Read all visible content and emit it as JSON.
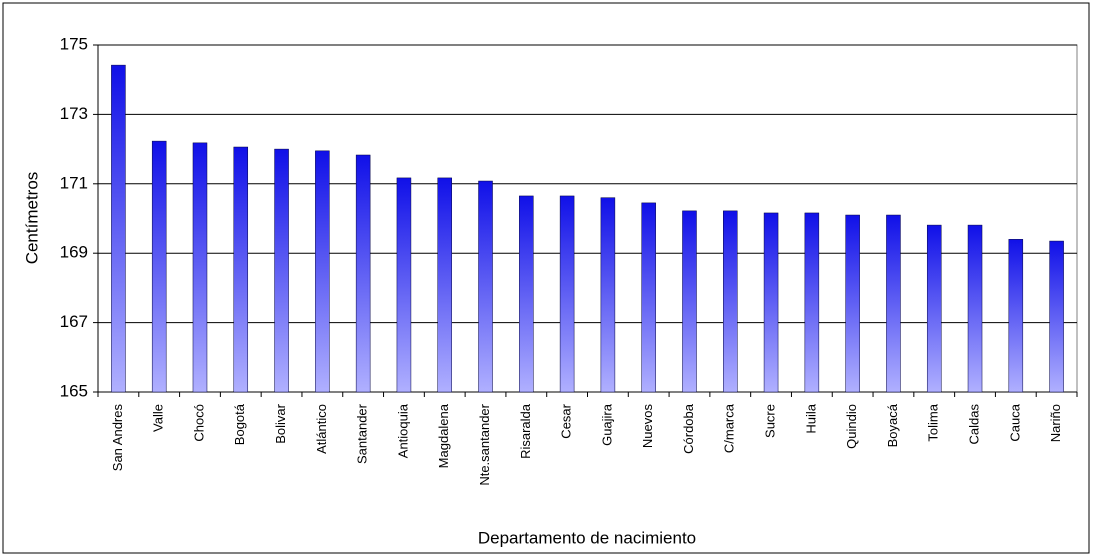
{
  "chart_data": {
    "type": "bar",
    "x_label": "Departamento de nacimiento",
    "y_label": "Centímetros",
    "categories": [
      "San Andres",
      "Valle",
      "Chocó",
      "Bogotá",
      "Bolivar",
      "Atlántico",
      "Santander",
      "Antioquia",
      "Magdalena",
      "Nte.santander",
      "Risaralda",
      "Cesar",
      "Guajira",
      "Nuevos",
      "Córdoba",
      "C/marca",
      "Sucre",
      "Huila",
      "Quindio",
      "Boyacá",
      "Tolima",
      "Caldas",
      "Cauca",
      "Nariño"
    ],
    "values": [
      174.42,
      172.23,
      172.18,
      172.06,
      172.0,
      171.95,
      171.83,
      171.17,
      171.17,
      171.08,
      170.65,
      170.65,
      170.6,
      170.45,
      170.22,
      170.22,
      170.16,
      170.16,
      170.1,
      170.1,
      169.81,
      169.81,
      169.4,
      169.35
    ],
    "color": "#1010e8",
    "ylim": [
      165,
      175
    ],
    "yticks": [
      165,
      167,
      169,
      171,
      173,
      175
    ],
    "grid": true
  }
}
